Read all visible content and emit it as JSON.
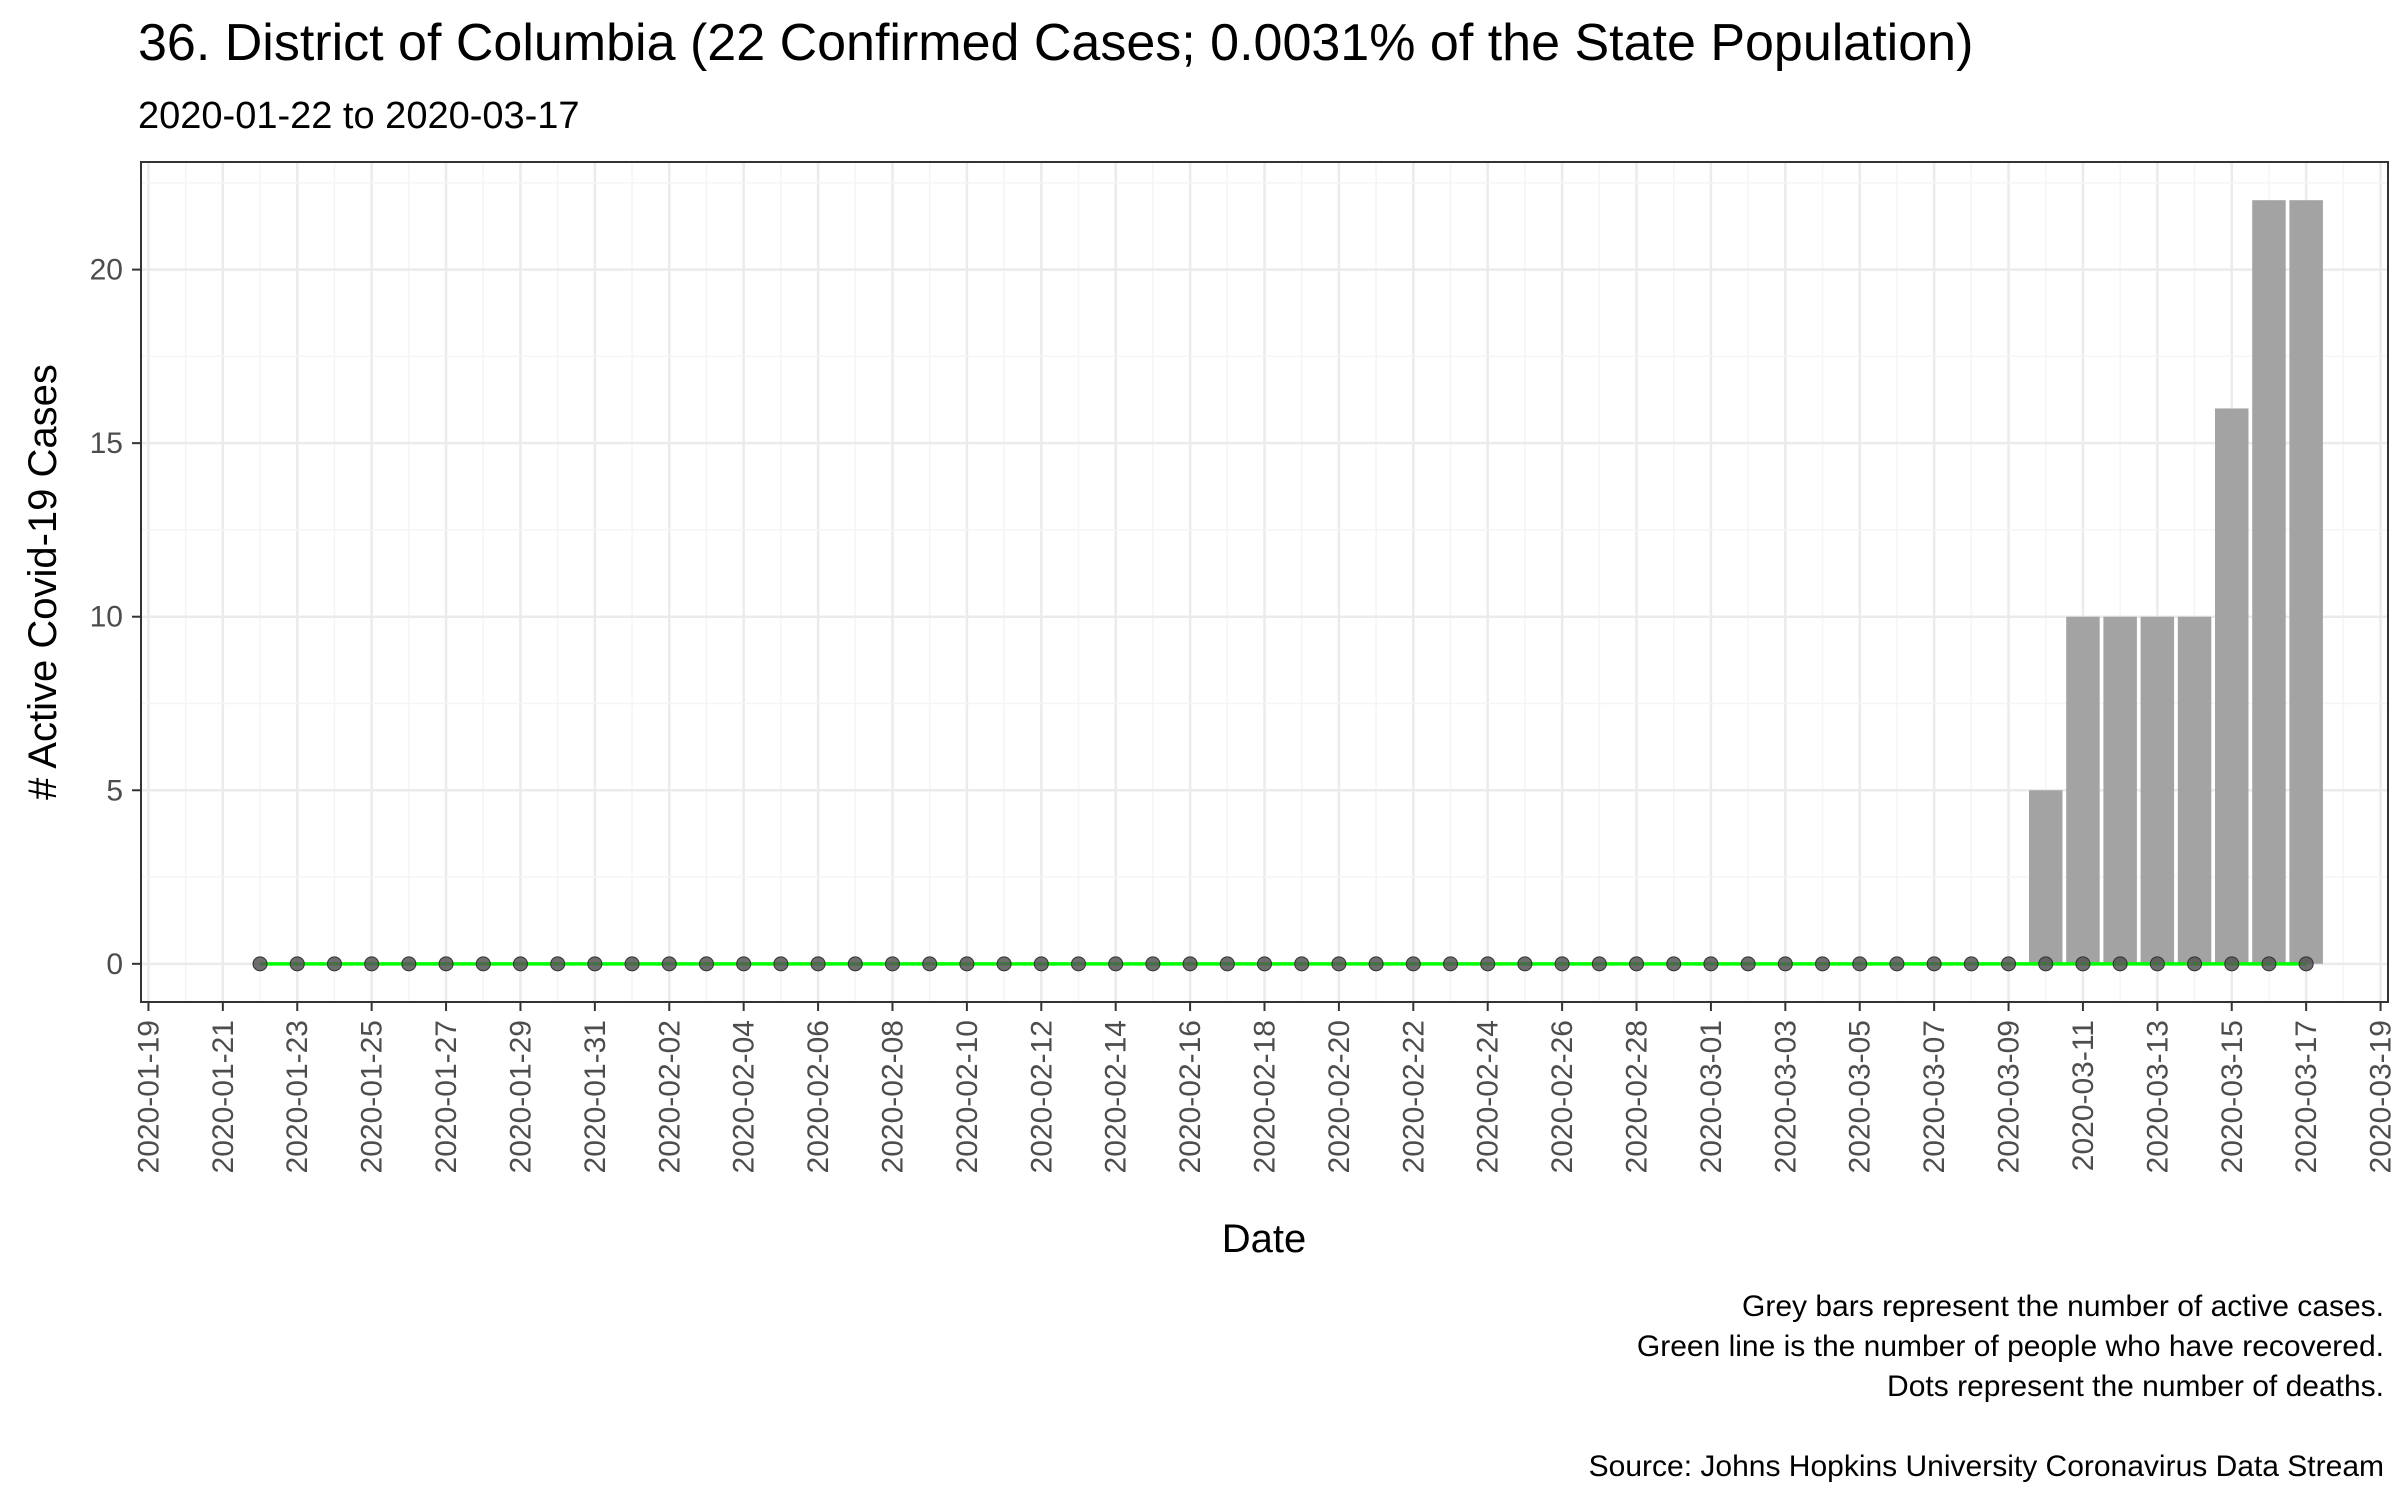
{
  "title": "36. District of Columbia (22 Confirmed Cases; 0.0031% of the State Population)",
  "subtitle": "2020-01-22 to 2020-03-17",
  "caption": [
    "Grey bars represent the number of active cases.",
    "Green line is the number of people who have recovered.",
    "Dots represent the number of deaths.",
    "",
    "Source: Johns Hopkins University Coronavirus Data Stream"
  ],
  "colors": {
    "bar": "#a3a3a3",
    "recovered_line": "#00ff00",
    "death_dot": "#555555",
    "panel_border": "#333333",
    "grid_major": "#ebebeb",
    "grid_minor": "#f5f5f5"
  },
  "chart_data": {
    "type": "bar",
    "xlabel": "Date",
    "ylabel": "# Active Covid-19 Cases",
    "xlim": [
      "2020-01-19",
      "2020-03-19"
    ],
    "ylim": [
      0,
      22
    ],
    "grid": true,
    "yticks": [
      0,
      5,
      10,
      15,
      20
    ],
    "xticks": [
      "2020-01-19",
      "2020-01-21",
      "2020-01-23",
      "2020-01-25",
      "2020-01-27",
      "2020-01-29",
      "2020-01-31",
      "2020-02-02",
      "2020-02-04",
      "2020-02-06",
      "2020-02-08",
      "2020-02-10",
      "2020-02-12",
      "2020-02-14",
      "2020-02-16",
      "2020-02-18",
      "2020-02-20",
      "2020-02-22",
      "2020-02-24",
      "2020-02-26",
      "2020-02-28",
      "2020-03-01",
      "2020-03-03",
      "2020-03-05",
      "2020-03-07",
      "2020-03-09",
      "2020-03-11",
      "2020-03-13",
      "2020-03-15",
      "2020-03-17",
      "2020-03-19"
    ],
    "active_cases": [
      {
        "date": "2020-03-10",
        "value": 5
      },
      {
        "date": "2020-03-11",
        "value": 10
      },
      {
        "date": "2020-03-12",
        "value": 10
      },
      {
        "date": "2020-03-13",
        "value": 10
      },
      {
        "date": "2020-03-14",
        "value": 10
      },
      {
        "date": "2020-03-15",
        "value": 16
      },
      {
        "date": "2020-03-16",
        "value": 22
      },
      {
        "date": "2020-03-17",
        "value": 22
      }
    ],
    "recovered": {
      "start": "2020-01-22",
      "end": "2020-03-17",
      "value": 0
    },
    "deaths": {
      "start": "2020-01-22",
      "end": "2020-03-17",
      "value": 0
    }
  }
}
